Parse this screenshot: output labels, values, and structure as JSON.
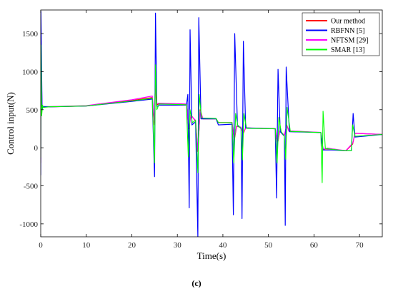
{
  "figure": {
    "caption": "(c)"
  },
  "chart_data": {
    "type": "line",
    "xlabel": "Time(s)",
    "ylabel": "Control input(N)",
    "xlim": [
      0,
      75
    ],
    "ylim": [
      -1170,
      1810
    ],
    "xticks": [
      0,
      10,
      20,
      30,
      40,
      50,
      60,
      70
    ],
    "yticks": [
      -1000,
      -500,
      0,
      500,
      1000,
      1500
    ],
    "grid": false,
    "legend_position": "top-right",
    "colors": {
      "Our method": "#ff0000",
      "RBFNN [5]": "#0000ff",
      "NFTSM [29]": "#ff00ff",
      "SMAR [13]": "#00ff00"
    },
    "series": [
      {
        "name": "Our method",
        "points": [
          [
            0,
            -200
          ],
          [
            0.05,
            1300
          ],
          [
            0.2,
            500
          ],
          [
            0.3,
            560
          ],
          [
            0.5,
            540
          ],
          [
            2,
            537
          ],
          [
            10,
            550
          ],
          [
            20,
            620
          ],
          [
            24.5,
            660
          ],
          [
            25,
            300
          ],
          [
            25.2,
            1000
          ],
          [
            25.4,
            560
          ],
          [
            26,
            580
          ],
          [
            32,
            570
          ],
          [
            32.5,
            250
          ],
          [
            33,
            430
          ],
          [
            34,
            350
          ],
          [
            34.5,
            -50
          ],
          [
            35,
            500
          ],
          [
            35.6,
            380
          ],
          [
            38.5,
            380
          ],
          [
            39,
            330
          ],
          [
            42,
            330
          ],
          [
            42.5,
            100
          ],
          [
            43,
            280
          ],
          [
            44,
            270
          ],
          [
            44.5,
            190
          ],
          [
            45,
            260
          ],
          [
            51.5,
            250
          ],
          [
            52,
            50
          ],
          [
            52.5,
            220
          ],
          [
            53.5,
            160
          ],
          [
            54,
            300
          ],
          [
            54.5,
            220
          ],
          [
            61.5,
            200
          ],
          [
            62,
            -30
          ],
          [
            62.5,
            -15
          ],
          [
            64,
            -20
          ],
          [
            67,
            -40
          ],
          [
            68.5,
            50
          ],
          [
            69,
            190
          ],
          [
            75,
            175
          ]
        ]
      },
      {
        "name": "RBFNN [5]",
        "points": [
          [
            0,
            -360
          ],
          [
            0.05,
            1790
          ],
          [
            0.3,
            500
          ],
          [
            0.5,
            540
          ],
          [
            2,
            537
          ],
          [
            10,
            548
          ],
          [
            20,
            610
          ],
          [
            24.5,
            640
          ],
          [
            25,
            -380
          ],
          [
            25.2,
            1770
          ],
          [
            25.5,
            540
          ],
          [
            26,
            560
          ],
          [
            32,
            560
          ],
          [
            32.3,
            700
          ],
          [
            32.6,
            -790
          ],
          [
            32.8,
            1550
          ],
          [
            33.2,
            300
          ],
          [
            34,
            340
          ],
          [
            34.5,
            -1170
          ],
          [
            34.7,
            1710
          ],
          [
            35.2,
            380
          ],
          [
            38.5,
            380
          ],
          [
            39,
            300
          ],
          [
            42,
            310
          ],
          [
            42.3,
            -880
          ],
          [
            42.6,
            1500
          ],
          [
            43.2,
            300
          ],
          [
            44,
            250
          ],
          [
            44.2,
            -930
          ],
          [
            44.5,
            1400
          ],
          [
            45,
            260
          ],
          [
            51.5,
            250
          ],
          [
            51.8,
            -660
          ],
          [
            52.1,
            1030
          ],
          [
            52.6,
            210
          ],
          [
            53.5,
            150
          ],
          [
            53.7,
            -1020
          ],
          [
            53.9,
            1060
          ],
          [
            54.6,
            210
          ],
          [
            61.5,
            200
          ],
          [
            62,
            -30
          ],
          [
            64,
            -30
          ],
          [
            67,
            -40
          ],
          [
            68.2,
            -40
          ],
          [
            68.6,
            450
          ],
          [
            69,
            140
          ],
          [
            75,
            175
          ]
        ]
      },
      {
        "name": "NFTSM [29]",
        "points": [
          [
            0,
            -150
          ],
          [
            0.05,
            1250
          ],
          [
            0.3,
            520
          ],
          [
            0.5,
            542
          ],
          [
            2,
            540
          ],
          [
            10,
            553
          ],
          [
            20,
            630
          ],
          [
            24.5,
            680
          ],
          [
            25,
            350
          ],
          [
            25.2,
            950
          ],
          [
            25.5,
            580
          ],
          [
            26,
            585
          ],
          [
            32,
            575
          ],
          [
            32.5,
            260
          ],
          [
            33,
            420
          ],
          [
            34,
            360
          ],
          [
            34.5,
            -30
          ],
          [
            35,
            480
          ],
          [
            35.6,
            385
          ],
          [
            38.5,
            385
          ],
          [
            39,
            330
          ],
          [
            42,
            330
          ],
          [
            42.5,
            120
          ],
          [
            43,
            285
          ],
          [
            44,
            270
          ],
          [
            44.5,
            200
          ],
          [
            45,
            262
          ],
          [
            51.5,
            252
          ],
          [
            52,
            60
          ],
          [
            52.5,
            222
          ],
          [
            53.5,
            165
          ],
          [
            54,
            290
          ],
          [
            54.5,
            222
          ],
          [
            61.5,
            202
          ],
          [
            62,
            -20
          ],
          [
            63,
            -5
          ],
          [
            64,
            -15
          ],
          [
            67,
            -38
          ],
          [
            68.5,
            60
          ],
          [
            69,
            190
          ],
          [
            75,
            175
          ]
        ]
      },
      {
        "name": "SMAR [13]",
        "points": [
          [
            0,
            -130
          ],
          [
            0.05,
            1350
          ],
          [
            0.2,
            420
          ],
          [
            0.4,
            560
          ],
          [
            0.6,
            530
          ],
          [
            2,
            538
          ],
          [
            10,
            549
          ],
          [
            20,
            615
          ],
          [
            24.5,
            650
          ],
          [
            25,
            -200
          ],
          [
            25.2,
            1090
          ],
          [
            25.5,
            500
          ],
          [
            26,
            575
          ],
          [
            32,
            565
          ],
          [
            32.4,
            -120
          ],
          [
            32.8,
            500
          ],
          [
            33.3,
            330
          ],
          [
            34,
            360
          ],
          [
            34.5,
            -330
          ],
          [
            34.8,
            700
          ],
          [
            35.3,
            390
          ],
          [
            38.5,
            385
          ],
          [
            39,
            330
          ],
          [
            42,
            330
          ],
          [
            42.4,
            -200
          ],
          [
            42.8,
            450
          ],
          [
            43.3,
            280
          ],
          [
            44,
            260
          ],
          [
            44.3,
            -160
          ],
          [
            44.6,
            450
          ],
          [
            45.2,
            255
          ],
          [
            51.5,
            250
          ],
          [
            51.9,
            -200
          ],
          [
            52.3,
            400
          ],
          [
            52.8,
            210
          ],
          [
            53.5,
            150
          ],
          [
            53.8,
            -150
          ],
          [
            54.1,
            530
          ],
          [
            54.8,
            215
          ],
          [
            61.5,
            200
          ],
          [
            61.8,
            -460
          ],
          [
            62,
            480
          ],
          [
            62.5,
            -10
          ],
          [
            64,
            -20
          ],
          [
            67,
            -40
          ],
          [
            68.2,
            -40
          ],
          [
            68.5,
            300
          ],
          [
            69,
            150
          ],
          [
            75,
            175
          ]
        ]
      }
    ]
  }
}
